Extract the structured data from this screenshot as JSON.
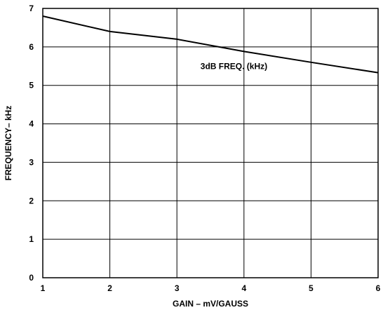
{
  "chart_data": {
    "type": "line",
    "xlabel": "GAIN – mV/GAUSS",
    "ylabel": "FREQUENCY– kHz",
    "xlim": [
      1,
      6
    ],
    "ylim": [
      0,
      7
    ],
    "x_ticks": [
      1,
      2,
      3,
      4,
      5,
      6
    ],
    "y_ticks": [
      0,
      1,
      2,
      3,
      4,
      5,
      6,
      7
    ],
    "grid": true,
    "series": [
      {
        "name": "3dB FREQ. (kHz)",
        "x": [
          1,
          2,
          3,
          4,
          5,
          6
        ],
        "y": [
          6.8,
          6.4,
          6.2,
          5.88,
          5.6,
          5.33
        ]
      }
    ]
  }
}
